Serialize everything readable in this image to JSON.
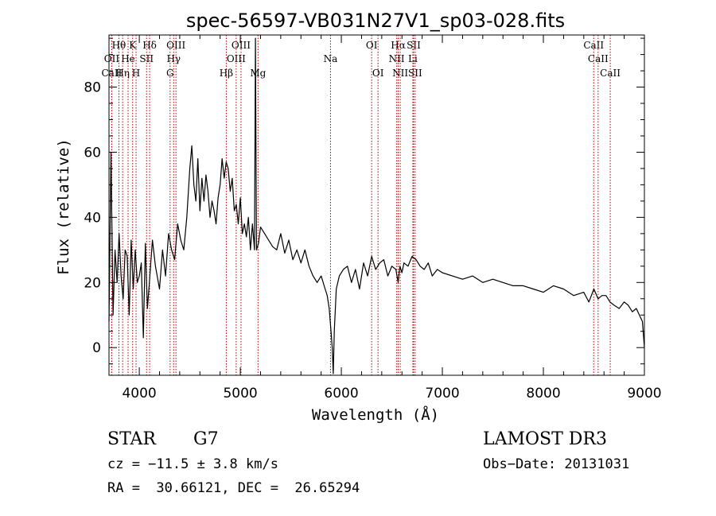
{
  "chart_data": {
    "type": "line",
    "title": "spec-56597-VB031N27V1_sp03-028.fits",
    "xlabel": "Wavelength (Å)",
    "ylabel": "Flux (relative)",
    "xlim": [
      3700,
      9000
    ],
    "ylim": [
      -8.5,
      96
    ],
    "xticks": [
      4000,
      5000,
      6000,
      7000,
      8000,
      9000
    ],
    "yticks": [
      0,
      20,
      40,
      60,
      80
    ],
    "series": [
      {
        "name": "flux",
        "x": [
          3700,
          3720,
          3740,
          3760,
          3780,
          3800,
          3820,
          3840,
          3860,
          3880,
          3900,
          3920,
          3940,
          3960,
          3980,
          4000,
          4020,
          4040,
          4060,
          4080,
          4100,
          4130,
          4160,
          4200,
          4230,
          4260,
          4290,
          4320,
          4350,
          4380,
          4410,
          4440,
          4470,
          4500,
          4520,
          4540,
          4560,
          4580,
          4600,
          4620,
          4640,
          4660,
          4680,
          4700,
          4720,
          4740,
          4760,
          4780,
          4800,
          4820,
          4840,
          4860,
          4880,
          4900,
          4920,
          4940,
          4960,
          4980,
          5000,
          5020,
          5040,
          5060,
          5080,
          5100,
          5120,
          5140,
          5150,
          5160,
          5180,
          5200,
          5240,
          5280,
          5320,
          5360,
          5400,
          5440,
          5480,
          5520,
          5560,
          5600,
          5640,
          5680,
          5720,
          5760,
          5800,
          5840,
          5860,
          5880,
          5890,
          5900,
          5910,
          5920,
          5930,
          5950,
          5980,
          6020,
          6060,
          6100,
          6140,
          6180,
          6220,
          6260,
          6300,
          6340,
          6380,
          6420,
          6460,
          6500,
          6540,
          6563,
          6580,
          6600,
          6620,
          6660,
          6700,
          6740,
          6780,
          6820,
          6860,
          6900,
          6950,
          7000,
          7100,
          7200,
          7300,
          7400,
          7500,
          7600,
          7700,
          7800,
          7900,
          8000,
          8100,
          8200,
          8300,
          8400,
          8450,
          8500,
          8542,
          8580,
          8620,
          8660,
          8700,
          8750,
          8800,
          8840,
          8880,
          8920,
          8950,
          8980,
          9000
        ],
        "values": [
          8,
          60,
          10,
          30,
          20,
          35,
          22,
          15,
          30,
          28,
          10,
          33,
          18,
          30,
          20,
          22,
          26,
          3,
          32,
          12,
          20,
          33,
          25,
          18,
          30,
          22,
          35,
          30,
          27,
          38,
          33,
          30,
          40,
          55,
          62,
          50,
          45,
          58,
          42,
          52,
          45,
          53,
          48,
          40,
          45,
          42,
          38,
          46,
          50,
          58,
          52,
          57,
          55,
          48,
          52,
          42,
          44,
          38,
          46,
          35,
          38,
          34,
          40,
          30,
          38,
          30,
          95,
          30,
          32,
          37,
          35,
          33,
          31,
          30,
          35,
          29,
          33,
          27,
          30,
          26,
          30,
          25,
          22,
          20,
          22,
          18,
          16,
          12,
          8,
          4,
          0,
          -8,
          5,
          18,
          22,
          24,
          25,
          20,
          24,
          18,
          26,
          22,
          28,
          24,
          26,
          27,
          22,
          25,
          24,
          20,
          25,
          23,
          26,
          25,
          28,
          27,
          25,
          24,
          26,
          22,
          24,
          23,
          22,
          21,
          22,
          20,
          21,
          20,
          19,
          19,
          18,
          17,
          19,
          18,
          16,
          17,
          14,
          18,
          15,
          16,
          16,
          14,
          13,
          12,
          14,
          13,
          11,
          12,
          10,
          8,
          0
        ]
      }
    ],
    "emission_lines": [
      {
        "label": "Hθ",
        "wl": 3798,
        "row": 1
      },
      {
        "label": "K",
        "wl": 3934,
        "row": 1
      },
      {
        "label": "Hδ",
        "wl": 4102,
        "row": 1
      },
      {
        "label": "OIII",
        "wl": 4363,
        "row": 1
      },
      {
        "label": "OIII",
        "wl": 5007,
        "row": 1
      },
      {
        "label": "OI",
        "wl": 6300,
        "row": 1
      },
      {
        "label": "Hα",
        "wl": 6563,
        "row": 1
      },
      {
        "label": "SII",
        "wl": 6716,
        "row": 1
      },
      {
        "label": "CaII",
        "wl": 8498,
        "row": 1
      },
      {
        "label": "OII",
        "wl": 3727,
        "row": 2
      },
      {
        "label": "He",
        "wl": 3889,
        "row": 2
      },
      {
        "label": "SII",
        "wl": 4072,
        "row": 2
      },
      {
        "label": "Hγ",
        "wl": 4340,
        "row": 2
      },
      {
        "label": "OIII",
        "wl": 4959,
        "row": 2
      },
      {
        "label": "Na",
        "wl": 5893,
        "row": 2
      },
      {
        "label": "NII",
        "wl": 6548,
        "row": 2
      },
      {
        "label": "Li",
        "wl": 6708,
        "row": 2
      },
      {
        "label": "CaII",
        "wl": 8542,
        "row": 2
      },
      {
        "label": "CaII",
        "wl": 3727,
        "row": 3
      },
      {
        "label": "Hη",
        "wl": 3835,
        "row": 3
      },
      {
        "label": "H",
        "wl": 3968,
        "row": 3
      },
      {
        "label": "G",
        "wl": 4305,
        "row": 3
      },
      {
        "label": "Hβ",
        "wl": 4861,
        "row": 3
      },
      {
        "label": "Mg",
        "wl": 5175,
        "row": 3
      },
      {
        "label": "OI",
        "wl": 6363,
        "row": 3
      },
      {
        "label": "NII",
        "wl": 6583,
        "row": 3
      },
      {
        "label": "SII",
        "wl": 6731,
        "row": 3
      },
      {
        "label": "CaII",
        "wl": 8662,
        "row": 3
      }
    ],
    "line_color": "#b00000"
  },
  "info": {
    "object_class": "STAR",
    "subclass": "G7",
    "survey": "LAMOST DR3",
    "cz": "cz = −11.5 ± 3.8 km/s",
    "obs_date": "Obs−Date: 20131031",
    "coords": "RA =  30.66121, DEC =  26.65294"
  }
}
